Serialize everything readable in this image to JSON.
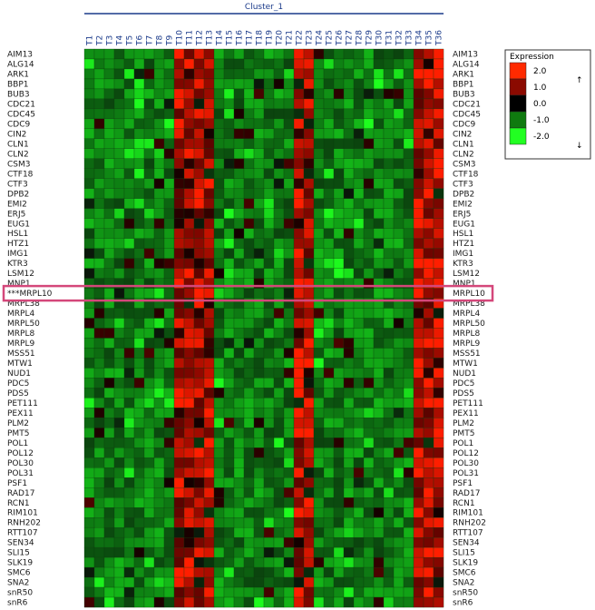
{
  "chart_data": {
    "type": "heatmap",
    "cluster_label": "Cluster_1",
    "columns": [
      "T1",
      "T2",
      "T3",
      "T4",
      "T5",
      "T6",
      "T7",
      "T8",
      "T9",
      "T10",
      "T11",
      "T12",
      "T13",
      "T14",
      "T15",
      "T16",
      "T17",
      "T18",
      "T19",
      "T20",
      "T21",
      "T22",
      "T23",
      "T24",
      "T25",
      "T26",
      "T27",
      "T28",
      "T29",
      "T30",
      "T31",
      "T32",
      "T33",
      "T34",
      "T35",
      "T36"
    ],
    "rows": [
      "AIM13",
      "ALG14",
      "ARK1",
      "BBP1",
      "BUB3",
      "CDC21",
      "CDC45",
      "CDC9",
      "CIN2",
      "CLN1",
      "CLN2",
      "CSM3",
      "CTF18",
      "CTF3",
      "DPB2",
      "EMI2",
      "ERJ5",
      "EUG1",
      "HSL1",
      "HTZ1",
      "IMG1",
      "KTR3",
      "LSM12",
      "MNP1",
      "MRPL10",
      "MRPL38",
      "MRPL4",
      "MRPL50",
      "MRPL8",
      "MRPL9",
      "MSS51",
      "MTW1",
      "NUD1",
      "PDC5",
      "PDS5",
      "PET111",
      "PEX11",
      "PLM2",
      "PMT5",
      "POL1",
      "POL12",
      "POL30",
      "POL31",
      "PSF1",
      "RAD17",
      "RCN1",
      "RIM101",
      "RNH202",
      "RTT107",
      "SEN34",
      "SLI15",
      "SLK19",
      "SMC6",
      "SNA2",
      "snR50",
      "snR6"
    ],
    "highlighted_row": "MRPL10",
    "highlight_prefix": "***",
    "legend": {
      "title": "Expression",
      "values": [
        "2.0",
        "1.0",
        "0.0",
        "-1.0",
        "-2.0"
      ],
      "colors": [
        "#ff2a00",
        "#8b0a00",
        "#000000",
        "#0f7a0f",
        "#22ff22"
      ],
      "up_arrow": "↑",
      "down_arrow": "↓"
    },
    "value_range": [
      -2.0,
      2.0
    ],
    "red_columns": [
      "T10",
      "T11",
      "T12",
      "T13",
      "T22",
      "T23",
      "T34",
      "T35",
      "T36"
    ]
  }
}
